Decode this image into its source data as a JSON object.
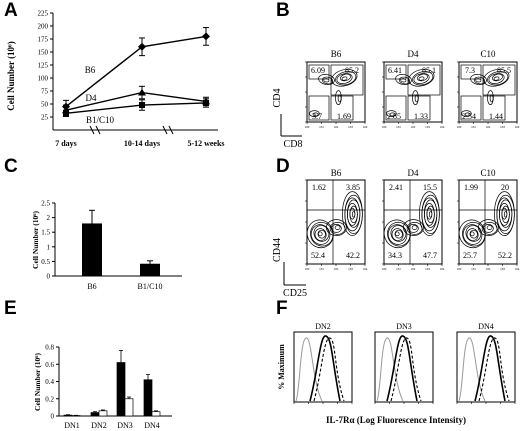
{
  "panels": {
    "A": {
      "letter": "A",
      "chart_data": {
        "type": "line",
        "ylabel": "Cell Number (10⁶)",
        "ylim": [
          0,
          225
        ],
        "yticks": [
          25,
          50,
          75,
          100,
          125,
          150,
          175,
          200,
          225
        ],
        "categories": [
          "7 days",
          "10-14 days",
          "5-12 weeks"
        ],
        "series": [
          {
            "name": "B6",
            "values": [
              45,
              160,
              180
            ],
            "errors": [
              12,
              17,
              17
            ],
            "marker": "diamond"
          },
          {
            "name": "D4",
            "values": [
              38,
              72,
              55
            ],
            "errors": [
              10,
              12,
              8
            ],
            "marker": "triangle"
          },
          {
            "name": "B1/C10",
            "values": [
              32,
              48,
              52
            ],
            "errors": [
              6,
              10,
              8
            ],
            "marker": "square"
          }
        ]
      }
    },
    "B": {
      "letter": "B",
      "xlabel": "CD8",
      "ylabel": "CD4",
      "plots": [
        {
          "title": "B6",
          "q_tl": "6.09",
          "q_tr": "85.2",
          "q_bl": "3.7",
          "q_br": "1.69"
        },
        {
          "title": "D4",
          "q_tl": "6.41",
          "q_tr": "85.1",
          "q_bl": "2.85",
          "q_br": "1.33"
        },
        {
          "title": "C10",
          "q_tl": "7.3",
          "q_tr": "85.5",
          "q_bl": "2.54",
          "q_br": "1.44"
        }
      ]
    },
    "C": {
      "letter": "C",
      "chart_data": {
        "type": "bar",
        "ylabel": "Cell Number (10⁶)",
        "ylim": [
          0,
          2.5
        ],
        "yticks": [
          0,
          0.5,
          1,
          1.5,
          2,
          2.5
        ],
        "categories": [
          "B6",
          "B1/C10"
        ],
        "values": [
          1.8,
          0.42
        ],
        "errors": [
          0.45,
          0.1
        ]
      }
    },
    "D": {
      "letter": "D",
      "xlabel": "CD25",
      "ylabel": "CD44",
      "plots": [
        {
          "title": "B6",
          "q_tl": "1.62",
          "q_tr": "3.85",
          "q_bl": "52.4",
          "q_br": "42.2"
        },
        {
          "title": "D4",
          "q_tl": "2.41",
          "q_tr": "15.5",
          "q_bl": "34.3",
          "q_br": "47.7"
        },
        {
          "title": "C10",
          "q_tl": "1.99",
          "q_tr": "20",
          "q_bl": "25.7",
          "q_br": "52.2"
        }
      ]
    },
    "E": {
      "letter": "E",
      "chart_data": {
        "type": "bar",
        "ylabel": "Cell Number (10⁶)",
        "ylim": [
          0,
          0.8
        ],
        "yticks": [
          0,
          0.2,
          0.4,
          0.6,
          0.8
        ],
        "categories": [
          "DN1",
          "DN2",
          "DN3",
          "DN4"
        ],
        "series": [
          {
            "values": [
              0.01,
              0.04,
              0.62,
              0.42
            ],
            "errors": [
              0.005,
              0.01,
              0.14,
              0.06
            ],
            "color": "#000000"
          },
          {
            "values": [
              0.005,
              0.06,
              0.2,
              0.05
            ],
            "errors": [
              0.003,
              0.01,
              0.02,
              0.01
            ],
            "color": "#ffffff"
          }
        ]
      }
    },
    "F": {
      "letter": "F",
      "xlabel": "IL-7Rα (Log Fluorescence Intensity)",
      "ylabel": "% Maximum",
      "plots": [
        {
          "title": "DN2"
        },
        {
          "title": "DN3"
        },
        {
          "title": "DN4"
        }
      ]
    }
  }
}
